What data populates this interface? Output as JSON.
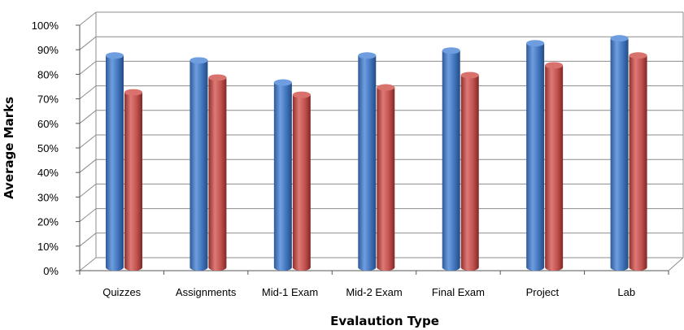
{
  "chart_data": {
    "type": "bar",
    "xlabel": "Evalaution Type",
    "ylabel": "Average Marks",
    "categories": [
      "Quizzes",
      "Assignments",
      "Mid-1 Exam",
      "Mid-2 Exam",
      "Final Exam",
      "Project",
      "Lab"
    ],
    "series": [
      {
        "values": [
          85,
          83,
          74,
          85,
          87,
          90,
          92
        ],
        "color": "#4a7ec4"
      },
      {
        "values": [
          70,
          76,
          69,
          72,
          77,
          81,
          85
        ],
        "color": "#c0504d"
      }
    ],
    "ylim": [
      0,
      100
    ],
    "y_ticks": [
      "0%",
      "10%",
      "20%",
      "30%",
      "40%",
      "50%",
      "60%",
      "70%",
      "80%",
      "90%",
      "100%"
    ],
    "grid": true,
    "style": "3d-cylinder",
    "legend": "none"
  }
}
